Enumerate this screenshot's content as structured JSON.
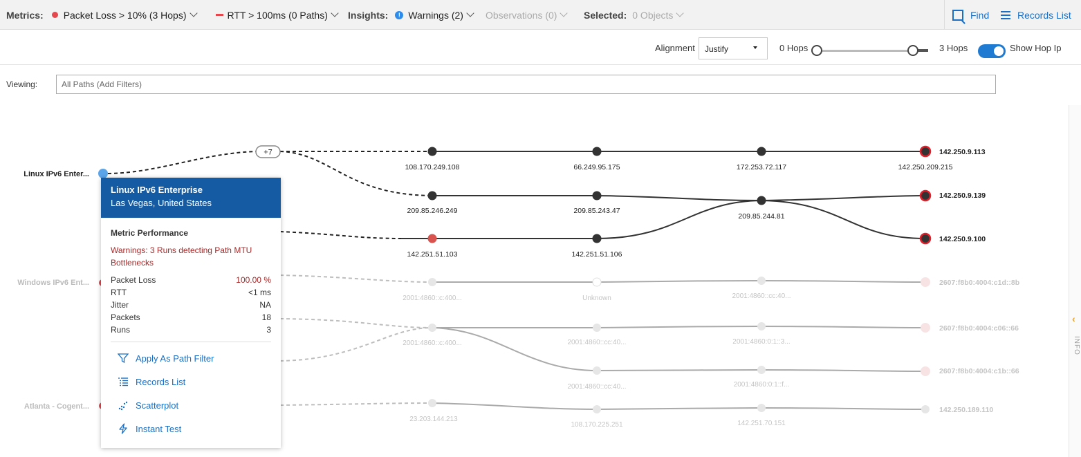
{
  "topbar": {
    "metrics_label": "Metrics:",
    "metric1": "Packet Loss > 10% (3 Hops)",
    "metric2": "RTT > 100ms (0 Paths)",
    "insights_label": "Insights:",
    "warnings": "Warnings (2)",
    "observations": "Observations (0)",
    "selected_label": "Selected:",
    "selected_value": "0 Objects",
    "find": "Find",
    "records_list": "Records List",
    "colors": {
      "alert": "#e5474f",
      "info": "#2d8ceb",
      "link": "#1a6fc4"
    }
  },
  "toolbar": {
    "alignment_label": "Alignment",
    "alignment_value": "Justify",
    "hops_min": "0 Hops",
    "hops_max": "3 Hops",
    "show_hop_ip": "Show Hop Ip",
    "show_hop_ip_on": true
  },
  "viewing": {
    "label": "Viewing:",
    "placeholder": "All Paths (Add Filters)"
  },
  "info_panel": {
    "label": "INFO"
  },
  "sources": [
    {
      "label": "Linux IPv6 Enter...",
      "active": true
    },
    {
      "label": "Windows IPv6 Ent...",
      "active": false
    },
    {
      "label": "Atlanta - Cogent...",
      "active": false
    }
  ],
  "collapsed_hops": "+7",
  "hop_labels": {
    "r1": [
      "108.170.249.108",
      "66.249.95.175",
      "172.253.72.117",
      "142.250.209.215"
    ],
    "r2": [
      "209.85.246.249",
      "209.85.243.47",
      "209.85.244.81"
    ],
    "r3": [
      "142.251.51.103",
      "142.251.51.106"
    ],
    "w1": [
      "2001:4860::c:400...",
      "Unknown",
      "2001:4860::cc:40..."
    ],
    "w2": [
      "2001:4860::c:400...",
      "2001:4860::cc:40...",
      "2001:4860:0:1::3..."
    ],
    "w3": [
      "2001:4860::cc:40...",
      "2001:4860:0:1::f..."
    ],
    "a1": [
      "23.203.144.213",
      "108.170.225.251",
      "142.251.70.151"
    ]
  },
  "destinations": [
    {
      "label": "142.250.9.113",
      "active": true
    },
    {
      "label": "142.250.9.139",
      "active": true
    },
    {
      "label": "142.250.9.100",
      "active": true
    },
    {
      "label": "2607:f8b0:4004:c1d::8b",
      "active": false
    },
    {
      "label": "2607:f8b0:4004:c06::66",
      "active": false
    },
    {
      "label": "2607:f8b0:4004:c1b::66",
      "active": false
    },
    {
      "label": "142.250.189.110",
      "active": false
    }
  ],
  "card": {
    "title": "Linux IPv6 Enterprise",
    "location": "Las Vegas, United States",
    "section": "Metric Performance",
    "warning": "Warnings: 3 Runs detecting Path MTU Bottlenecks",
    "stats": [
      {
        "label": "Packet Loss",
        "value": "100.00 %"
      },
      {
        "label": "RTT",
        "value": "<1 ms"
      },
      {
        "label": "Jitter",
        "value": "NA"
      },
      {
        "label": "Packets",
        "value": "18"
      },
      {
        "label": "Runs",
        "value": "3"
      }
    ],
    "actions": [
      {
        "label": "Apply As Path Filter",
        "icon": "filter-icon"
      },
      {
        "label": "Records List",
        "icon": "list-icon"
      },
      {
        "label": "Scatterplot",
        "icon": "scatter-icon"
      },
      {
        "label": "Instant Test",
        "icon": "lightning-icon"
      }
    ]
  }
}
